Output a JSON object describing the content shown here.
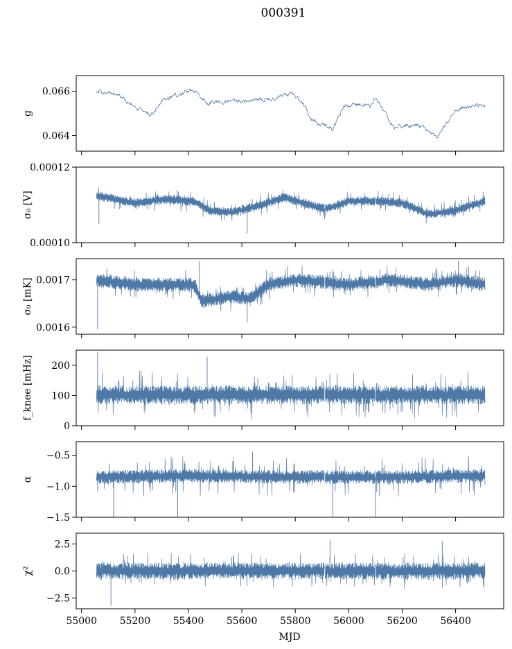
{
  "chart_data": {
    "type": "line",
    "title": "000391",
    "xlabel": "MJD",
    "xlim": [
      54980,
      56580
    ],
    "xticks": [
      55000,
      55200,
      55400,
      55600,
      55800,
      56000,
      56200,
      56400
    ],
    "xtick_labels": [
      "55000",
      "55200",
      "55400",
      "55600",
      "55800",
      "56000",
      "56200",
      "56400"
    ],
    "x_range": [
      55056,
      56510
    ],
    "line_color": "#4e79a7",
    "gaps": [
      55910,
      56100
    ],
    "panels": [
      {
        "name": "g",
        "ylabel": "g",
        "ylim": [
          0.0633,
          0.0667
        ],
        "yticks": [
          0.064,
          0.066
        ],
        "ytick_labels": [
          "0.064",
          "0.066"
        ],
        "style": "smooth",
        "baseline": [
          [
            55056,
            0.06595
          ],
          [
            55120,
            0.06595
          ],
          [
            55200,
            0.0653
          ],
          [
            55260,
            0.0649
          ],
          [
            55300,
            0.0656
          ],
          [
            55420,
            0.06605
          ],
          [
            55470,
            0.06545
          ],
          [
            55550,
            0.06555
          ],
          [
            55700,
            0.0656
          ],
          [
            55790,
            0.0659
          ],
          [
            55830,
            0.0654
          ],
          [
            55860,
            0.0647
          ],
          [
            55940,
            0.0643
          ],
          [
            55980,
            0.0653
          ],
          [
            56040,
            0.0654
          ],
          [
            56080,
            0.0653
          ],
          [
            56100,
            0.0657
          ],
          [
            56170,
            0.0644
          ],
          [
            56260,
            0.0645
          ],
          [
            56330,
            0.0639
          ],
          [
            56400,
            0.0652
          ],
          [
            56510,
            0.0654
          ]
        ],
        "noise": 7e-05
      },
      {
        "name": "sigma0-volt",
        "ylabel": "σ₀ [V]",
        "ylim": [
          0.0001,
          0.00012
        ],
        "yticks": [
          0.0001,
          0.00012
        ],
        "ytick_labels": [
          "0.00010",
          "0.00012"
        ],
        "style": "noise",
        "baseline": [
          [
            55056,
            0.0001125
          ],
          [
            55200,
            0.0001105
          ],
          [
            55300,
            0.0001115
          ],
          [
            55420,
            0.000111
          ],
          [
            55480,
            0.0001085
          ],
          [
            55560,
            0.000108
          ],
          [
            55650,
            0.0001095
          ],
          [
            55760,
            0.000112
          ],
          [
            55880,
            0.0001095
          ],
          [
            55920,
            0.000109
          ],
          [
            56000,
            0.000111
          ],
          [
            56100,
            0.000111
          ],
          [
            56200,
            0.0001105
          ],
          [
            56300,
            0.0001075
          ],
          [
            56400,
            0.0001085
          ],
          [
            56510,
            0.000111
          ]
        ],
        "noise": 1.1e-06,
        "tail": 1.8e-06,
        "spikes": [
          [
            55065,
            0.000105
          ],
          [
            55620,
            0.0001025
          ],
          [
            55910,
            0.0001062
          ],
          [
            56350,
            0.000107
          ]
        ]
      },
      {
        "name": "sigma0-temp",
        "ylabel": "σ₀ [mK]",
        "ylim": [
          0.001585,
          0.001745
        ],
        "yticks": [
          0.0016,
          0.0017
        ],
        "ytick_labels": [
          "0.0016",
          "0.0017"
        ],
        "style": "noise",
        "baseline": [
          [
            55056,
            0.0017
          ],
          [
            55200,
            0.00169
          ],
          [
            55420,
            0.00169
          ],
          [
            55450,
            0.001655
          ],
          [
            55560,
            0.001665
          ],
          [
            55630,
            0.00166
          ],
          [
            55700,
            0.00169
          ],
          [
            55800,
            0.0017
          ],
          [
            56000,
            0.00169
          ],
          [
            56150,
            0.0017
          ],
          [
            56300,
            0.00169
          ],
          [
            56400,
            0.0017
          ],
          [
            56510,
            0.00169
          ]
        ],
        "noise": 1.35e-05,
        "tail": 2e-05,
        "spikes": [
          [
            55060,
            0.001595
          ],
          [
            55440,
            0.00174
          ],
          [
            55620,
            0.00161
          ],
          [
            56410,
            0.00174
          ]
        ]
      },
      {
        "name": "fknee",
        "ylabel": "f_knee [mHz]",
        "ylim": [
          0,
          250
        ],
        "yticks": [
          0,
          100,
          200
        ],
        "ytick_labels": [
          "0",
          "100",
          "200"
        ],
        "style": "noise",
        "baseline": [
          [
            55056,
            102
          ],
          [
            56510,
            102
          ]
        ],
        "noise": 28,
        "tail": 55,
        "spikes": [
          [
            55060,
            245
          ],
          [
            55470,
            228
          ]
        ]
      },
      {
        "name": "alpha",
        "ylabel": "α",
        "ylim": [
          -1.5,
          -0.28
        ],
        "yticks": [
          -1.5,
          -1.0,
          -0.5
        ],
        "ytick_labels": [
          "−1.5",
          "−1.0",
          "−0.5"
        ],
        "style": "noise",
        "baseline": [
          [
            55056,
            -0.85
          ],
          [
            55400,
            -0.83
          ],
          [
            55800,
            -0.85
          ],
          [
            56200,
            -0.85
          ],
          [
            56510,
            -0.83
          ]
        ],
        "noise": 0.1,
        "tail": 0.22,
        "spikes": [
          [
            55120,
            -1.5
          ],
          [
            55360,
            -1.5
          ],
          [
            55940,
            -1.5
          ],
          [
            56100,
            -1.5
          ],
          [
            55640,
            -0.45
          ]
        ]
      },
      {
        "name": "chi2",
        "ylabel": "χ²",
        "ylim": [
          -3.5,
          3.5
        ],
        "yticks": [
          -2.5,
          0.0,
          2.5
        ],
        "ytick_labels": [
          "−2.5",
          "0.0",
          "2.5"
        ],
        "style": "noise",
        "baseline": [
          [
            55056,
            0.0
          ],
          [
            56510,
            0.0
          ]
        ],
        "noise": 0.7,
        "tail": 1.0,
        "spikes": [
          [
            55110,
            -3.2
          ],
          [
            55930,
            2.9
          ],
          [
            56350,
            2.8
          ]
        ]
      }
    ]
  }
}
